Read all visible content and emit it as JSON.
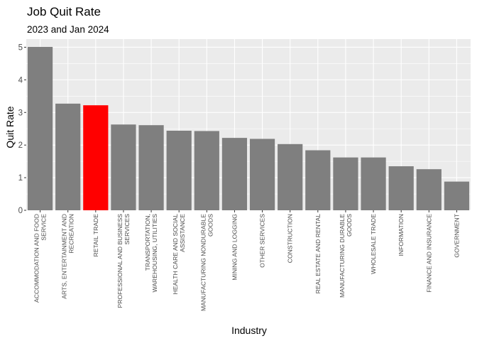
{
  "chart_data": {
    "type": "bar",
    "title": "Job Quit Rate",
    "subtitle": "2023 and Jan 2024",
    "xlabel": "Industry",
    "ylabel": "Quit Rate",
    "ylim": [
      0,
      5.25
    ],
    "yticks": [
      0,
      1,
      2,
      3,
      4,
      5
    ],
    "grid": true,
    "categories": [
      [
        "ACCOMMODATION AND FOOD",
        "SERVICE"
      ],
      [
        "ARTS, ENTERTAINMENT AND",
        "RECREATION"
      ],
      [
        "RETAIL TRADE"
      ],
      [
        "PROFESSIONAL AND BUSINESS",
        "SERVICES"
      ],
      [
        "TRANSPORTATION,",
        "WAREHOUSING, UTILITIES"
      ],
      [
        "HEALTH CARE AND SOCIAL",
        "ASSISTANCE"
      ],
      [
        "MANUFACTURING NONDURABLE",
        "GOODS"
      ],
      [
        "MINING AND LOGGING"
      ],
      [
        "OTHER SERVICES"
      ],
      [
        "CONSTRUCTION"
      ],
      [
        "REAL ESTATE AND RENTAL"
      ],
      [
        "MANUFACTURING DURABLE",
        "GOODS"
      ],
      [
        "WHOLESALE TRADE"
      ],
      [
        "INFORMATION"
      ],
      [
        "FINANCE AND INSURANCE"
      ],
      [
        "GOVERNMENT"
      ]
    ],
    "values": [
      5.01,
      3.27,
      3.22,
      2.63,
      2.61,
      2.44,
      2.43,
      2.22,
      2.19,
      2.03,
      1.84,
      1.62,
      1.62,
      1.35,
      1.26,
      0.88
    ],
    "bar_color": "#7f7f7f",
    "highlight_index": 2,
    "highlight_color": "#ff0000",
    "panel_background": "#ebebeb",
    "grid_color": "#ffffff"
  }
}
